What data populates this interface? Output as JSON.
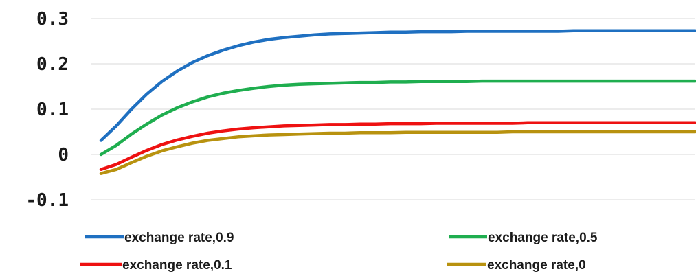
{
  "chart_data": {
    "type": "line",
    "title": "",
    "xlabel": "",
    "ylabel": "",
    "ylim": [
      -0.1,
      0.3
    ],
    "y_ticks": [
      "0.3",
      "0.2",
      "0.1",
      "0",
      "-0.1"
    ],
    "y_tick_values": [
      0.3,
      0.2,
      0.1,
      0,
      -0.1
    ],
    "grid": "horizontal",
    "legend_position": "bottom",
    "x": [
      1,
      2,
      3,
      4,
      5,
      6,
      7,
      8,
      9,
      10,
      11,
      12,
      13,
      14,
      15,
      16,
      17,
      18,
      19,
      20,
      21,
      22,
      23,
      24,
      25,
      26,
      27,
      28,
      29,
      30,
      31,
      32,
      33,
      34,
      35,
      36,
      37,
      38,
      39,
      40
    ],
    "series": [
      {
        "name": "exchange rate,0.9",
        "color": "#1f70c1",
        "values": [
          0.031,
          0.063,
          0.1,
          0.133,
          0.161,
          0.184,
          0.203,
          0.218,
          0.23,
          0.24,
          0.248,
          0.254,
          0.258,
          0.261,
          0.264,
          0.266,
          0.267,
          0.268,
          0.269,
          0.27,
          0.27,
          0.271,
          0.271,
          0.271,
          0.272,
          0.272,
          0.272,
          0.272,
          0.272,
          0.272,
          0.272,
          0.273,
          0.273,
          0.273,
          0.273,
          0.273,
          0.273,
          0.273,
          0.273,
          0.273
        ]
      },
      {
        "name": "exchange rate,0.5",
        "color": "#1fae4f",
        "values": [
          0.0,
          0.02,
          0.045,
          0.067,
          0.087,
          0.103,
          0.116,
          0.127,
          0.135,
          0.141,
          0.146,
          0.15,
          0.153,
          0.155,
          0.156,
          0.157,
          0.158,
          0.159,
          0.159,
          0.16,
          0.16,
          0.161,
          0.161,
          0.161,
          0.161,
          0.162,
          0.162,
          0.162,
          0.162,
          0.162,
          0.162,
          0.162,
          0.162,
          0.162,
          0.162,
          0.162,
          0.162,
          0.162,
          0.162,
          0.162
        ]
      },
      {
        "name": "exchange rate,0.1",
        "color": "#ee1111",
        "values": [
          -0.033,
          -0.022,
          -0.006,
          0.009,
          0.022,
          0.032,
          0.04,
          0.047,
          0.052,
          0.056,
          0.059,
          0.061,
          0.063,
          0.064,
          0.065,
          0.066,
          0.066,
          0.067,
          0.067,
          0.068,
          0.068,
          0.068,
          0.069,
          0.069,
          0.069,
          0.069,
          0.069,
          0.069,
          0.07,
          0.07,
          0.07,
          0.07,
          0.07,
          0.07,
          0.07,
          0.07,
          0.07,
          0.07,
          0.07,
          0.07
        ]
      },
      {
        "name": "exchange rate,0",
        "color": "#b8920f",
        "values": [
          -0.042,
          -0.033,
          -0.018,
          -0.004,
          0.008,
          0.017,
          0.025,
          0.031,
          0.035,
          0.039,
          0.041,
          0.043,
          0.044,
          0.045,
          0.046,
          0.047,
          0.047,
          0.048,
          0.048,
          0.048,
          0.049,
          0.049,
          0.049,
          0.049,
          0.049,
          0.049,
          0.049,
          0.05,
          0.05,
          0.05,
          0.05,
          0.05,
          0.05,
          0.05,
          0.05,
          0.05,
          0.05,
          0.05,
          0.05,
          0.05
        ]
      }
    ]
  }
}
